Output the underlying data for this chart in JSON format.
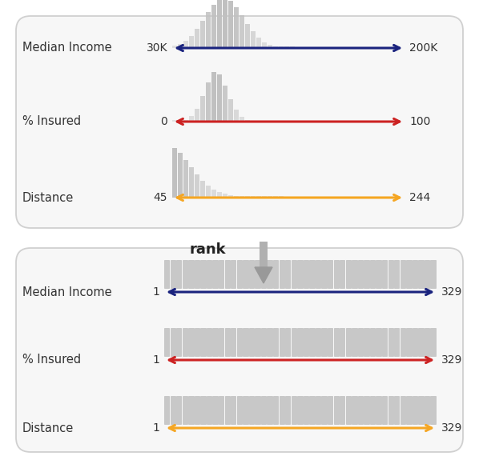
{
  "bg_color": "#ffffff",
  "box_fc": "#f7f7f7",
  "box_ec": "#d0d0d0",
  "bar_color": "#c0c0c0",
  "label_color": "#333333",
  "rank_text_color": "#222222",
  "rank_arrow_color": "#999999",
  "title": "rank",
  "rows_top": [
    {
      "label": "Median Income",
      "left_val": "30K",
      "right_val": "200K",
      "arrow_color": "#1a237e",
      "hist_type": "normal"
    },
    {
      "label": "% Insured",
      "left_val": "0",
      "right_val": "100",
      "arrow_color": "#cc2222",
      "hist_type": "left_skew"
    },
    {
      "label": "Distance",
      "left_val": "45",
      "right_val": "244",
      "arrow_color": "#f5a623",
      "hist_type": "right_skew"
    }
  ],
  "rows_bottom": [
    {
      "label": "Median Income",
      "left_val": "1",
      "right_val": "329",
      "arrow_color": "#1a237e"
    },
    {
      "label": "% Insured",
      "left_val": "1",
      "right_val": "329",
      "arrow_color": "#cc2222"
    },
    {
      "label": "Distance",
      "left_val": "1",
      "right_val": "329",
      "arrow_color": "#f5a623"
    }
  ]
}
